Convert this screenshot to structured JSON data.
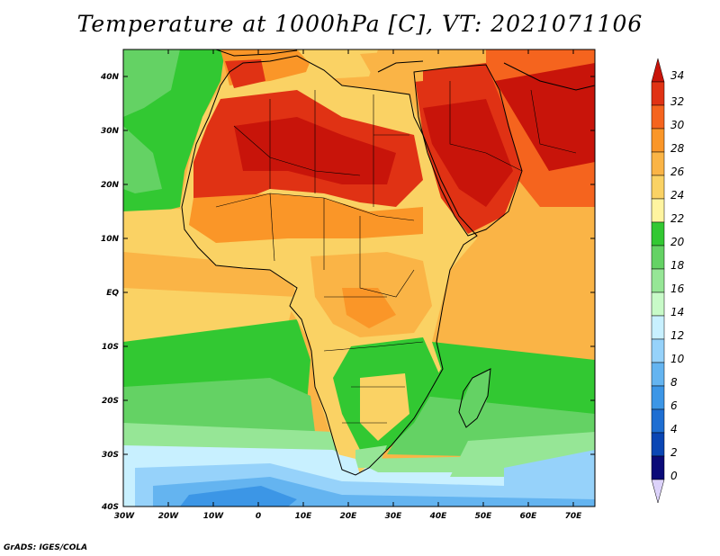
{
  "title": "Temperature at 1000hPa [C], VT: 2021071106",
  "credit": "GrADS: IGES/COLA",
  "map": {
    "lon_range": [
      -30,
      75
    ],
    "lat_range": [
      -40,
      45
    ],
    "lat_labels": [
      "40N",
      "30N",
      "20N",
      "10N",
      "EQ",
      "10S",
      "20S",
      "30S",
      "40S"
    ],
    "lon_labels": [
      "30W",
      "20W",
      "10W",
      "0",
      "10E",
      "20E",
      "30E",
      "40E",
      "50E",
      "60E",
      "70E"
    ]
  },
  "colorbar": {
    "labels": [
      "34",
      "32",
      "30",
      "28",
      "26",
      "24",
      "22",
      "20",
      "18",
      "16",
      "14",
      "12",
      "10",
      "8",
      "6",
      "4",
      "2",
      "0"
    ],
    "colors": [
      "#c8140a",
      "#e03214",
      "#f5641e",
      "#fa9628",
      "#fab446",
      "#fad264",
      "#fff4a0",
      "#32c832",
      "#64d264",
      "#96e696",
      "#c8fac8",
      "#c8f0ff",
      "#96d2fa",
      "#64b4f0",
      "#3c96e6",
      "#1e6ed2",
      "#0a46b4",
      "#0a0a78",
      "#dcd2fa"
    ]
  }
}
